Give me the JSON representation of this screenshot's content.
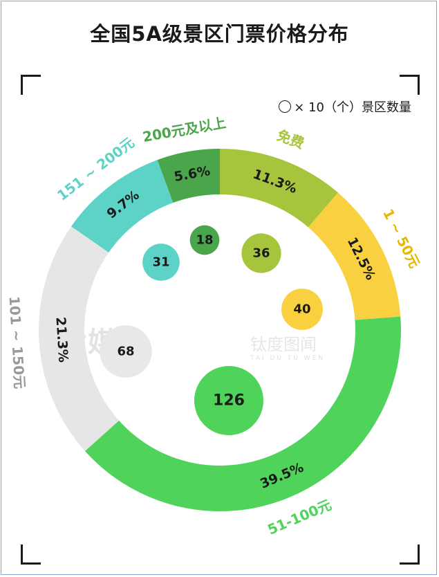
{
  "chart_data": {
    "type": "donut-with-bubbles",
    "title": "全国5A级景区门票价格分布",
    "legend": {
      "symbol": "○",
      "text": "× 10（个）景区数量"
    },
    "series": [
      {
        "name": "免费",
        "percent": 11.3,
        "percent_label": "11.3%",
        "count": 36,
        "color": "#a6c43c"
      },
      {
        "name": "1 ~ 50元",
        "percent": 12.5,
        "percent_label": "12.5%",
        "count": 40,
        "color": "#f9d03f"
      },
      {
        "name": "51-100元",
        "percent": 39.5,
        "percent_label": "39.5%",
        "count": 126,
        "color": "#4fd35a"
      },
      {
        "name": "101 ~ 150元",
        "percent": 21.3,
        "percent_label": "21.3%",
        "count": 68,
        "color": "#e6e6e6"
      },
      {
        "name": "151 ~ 200元",
        "percent": 9.7,
        "percent_label": "9.7%",
        "count": 31,
        "color": "#5dd3c8"
      },
      {
        "name": "200元及以上",
        "percent": 5.6,
        "percent_label": "5.6%",
        "count": 18,
        "color": "#4aa64a"
      }
    ],
    "category_label_colors": [
      "#a6c43c",
      "#e6b800",
      "#4fd35a",
      "#999999",
      "#5dd3c8",
      "#4aa64a"
    ],
    "watermark": {
      "primary": "钛媒体",
      "secondary": "钛度图闻",
      "tagline": "TAI DU TU WEN"
    }
  }
}
